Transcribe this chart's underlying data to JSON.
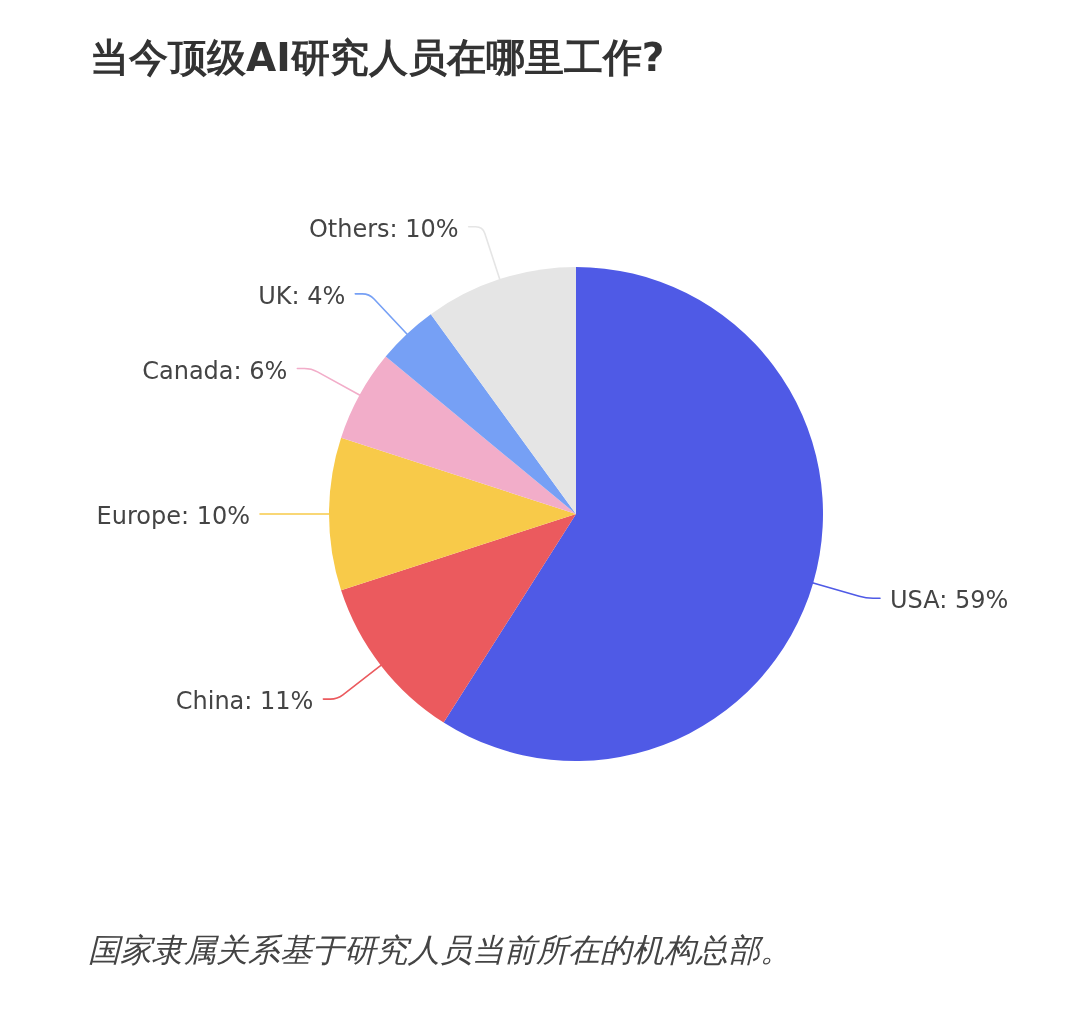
{
  "chart_data": {
    "type": "pie",
    "title": "当今顶级AI研究人员在哪里工作?",
    "categories": [
      "USA",
      "China",
      "Europe",
      "Canada",
      "UK",
      "Others"
    ],
    "values": [
      59,
      11,
      10,
      6,
      4,
      10
    ],
    "colors": [
      "#4f5ae6",
      "#eb5a5e",
      "#f8ca49",
      "#f2adc9",
      "#76a0f5",
      "#e5e5e5"
    ],
    "value_labels": [
      "59%",
      "11%",
      "10%",
      "6%",
      "4%",
      "10%"
    ],
    "annotations": [
      "国家隶属关系基于研究人员当前所在的机构总部。"
    ]
  }
}
